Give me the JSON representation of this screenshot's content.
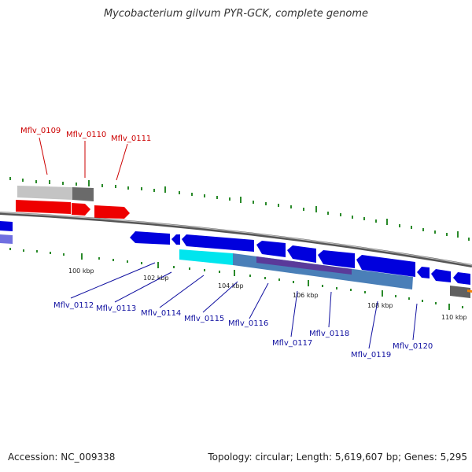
{
  "title": "Mycobacterium gilvum PYR-GCK, complete genome",
  "footer": {
    "accession": "Accession: NC_009338",
    "summary": "Topology: circular; Length: 5,619,607 bp; Genes: 5,295"
  },
  "tick_labels": [
    "100 kbp",
    "102 kbp",
    "104 kbp",
    "106 kbp",
    "108 kbp",
    "110 kbp"
  ],
  "genes_forward": [
    "Mflv_0109",
    "Mflv_0110",
    "Mflv_0111"
  ],
  "genes_reverse": [
    "Mflv_0112",
    "Mflv_0113",
    "Mflv_0114",
    "Mflv_0115",
    "Mflv_0116",
    "Mflv_0117",
    "Mflv_0118",
    "Mflv_0119",
    "Mflv_0120"
  ],
  "colors": {
    "forward_gene": "#ee0000",
    "reverse_gene": "#0000dd",
    "backbone": "#777777",
    "tick": "#2a8a2a",
    "feature_cyan": "#00e5ee",
    "feature_steel": "#4a7fb8",
    "feature_grey": "#aaaaaa"
  }
}
